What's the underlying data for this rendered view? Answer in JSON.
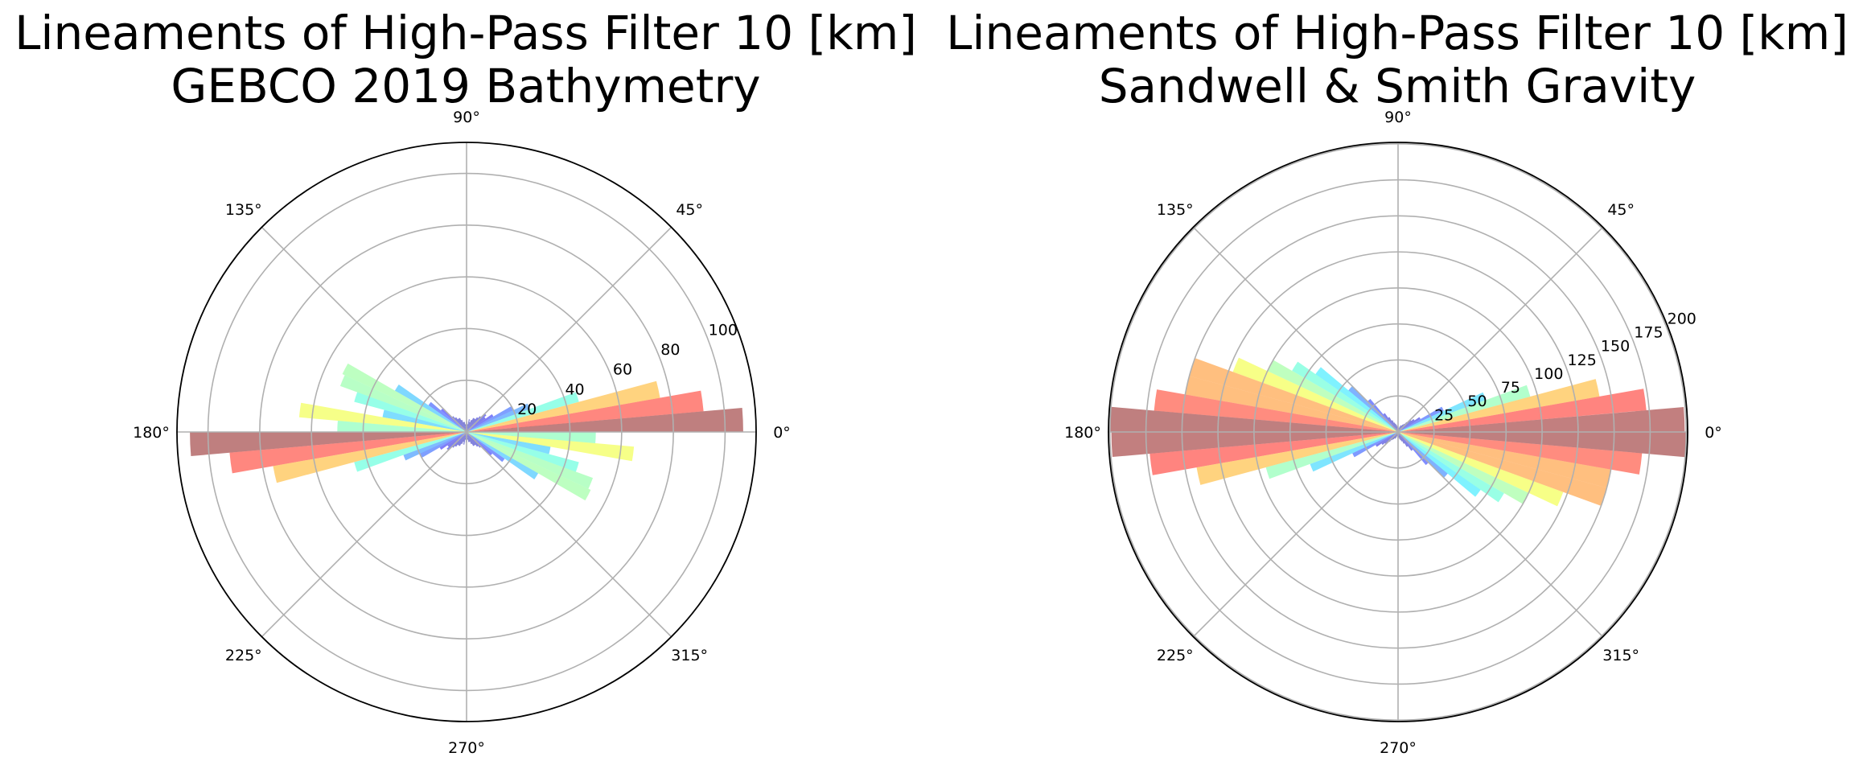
{
  "chart_data": [
    {
      "type": "polar-bar",
      "title_line1": "Lineaments of High-Pass Filter 10 [km]",
      "title_line2": "GEBCO 2019 Bathymetry",
      "theta_labels": [
        "0°",
        "45°",
        "90°",
        "135°",
        "180°",
        "225°",
        "270°",
        "315°"
      ],
      "r_ticks": [
        20,
        40,
        60,
        80,
        100
      ],
      "r_max": 112,
      "grid": true,
      "bin_width_deg": 5,
      "angles_deg": [
        2.5,
        7.5,
        12.5,
        17.5,
        22.5,
        27.5,
        32.5,
        37.5,
        42.5,
        47.5,
        52.5,
        57.5,
        62.5,
        67.5,
        72.5,
        77.5,
        82.5,
        87.5,
        92.5,
        97.5,
        102.5,
        107.5,
        112.5,
        117.5,
        122.5,
        127.5,
        132.5,
        137.5,
        142.5,
        147.5,
        152.5,
        157.5,
        162.5,
        167.5,
        172.5,
        177.5
      ],
      "values": [
        107,
        92,
        76,
        45,
        26,
        20,
        12,
        9,
        10,
        8,
        7,
        6,
        6,
        5,
        4,
        5,
        3,
        4,
        3,
        3,
        4,
        4,
        5,
        6,
        6,
        7,
        8,
        13,
        18,
        32,
        53,
        52,
        45,
        33,
        65,
        50
      ]
    },
    {
      "type": "polar-bar",
      "title_line1": "Lineaments of High-Pass Filter 10 [km]",
      "title_line2": "Sandwell & Smith Gravity",
      "theta_labels": [
        "0°",
        "45°",
        "90°",
        "135°",
        "180°",
        "225°",
        "270°",
        "315°"
      ],
      "r_ticks": [
        25,
        50,
        75,
        100,
        125,
        150,
        175,
        200
      ],
      "r_max": 201,
      "grid": true,
      "bin_width_deg": 5,
      "angles_deg": [
        2.5,
        7.5,
        12.5,
        17.5,
        22.5,
        27.5,
        32.5,
        37.5,
        42.5,
        47.5,
        52.5,
        57.5,
        62.5,
        67.5,
        72.5,
        77.5,
        82.5,
        87.5,
        92.5,
        97.5,
        102.5,
        107.5,
        112.5,
        117.5,
        122.5,
        127.5,
        132.5,
        137.5,
        142.5,
        147.5,
        152.5,
        157.5,
        162.5,
        167.5,
        172.5,
        177.5
      ],
      "values": [
        199,
        173,
        142,
        95,
        65,
        35,
        18,
        14,
        12,
        9,
        7,
        6,
        5,
        5,
        4,
        3,
        3,
        4,
        4,
        4,
        5,
        6,
        7,
        9,
        12,
        16,
        30,
        45,
        70,
        85,
        100,
        122,
        150,
        150,
        170,
        200
      ]
    }
  ]
}
